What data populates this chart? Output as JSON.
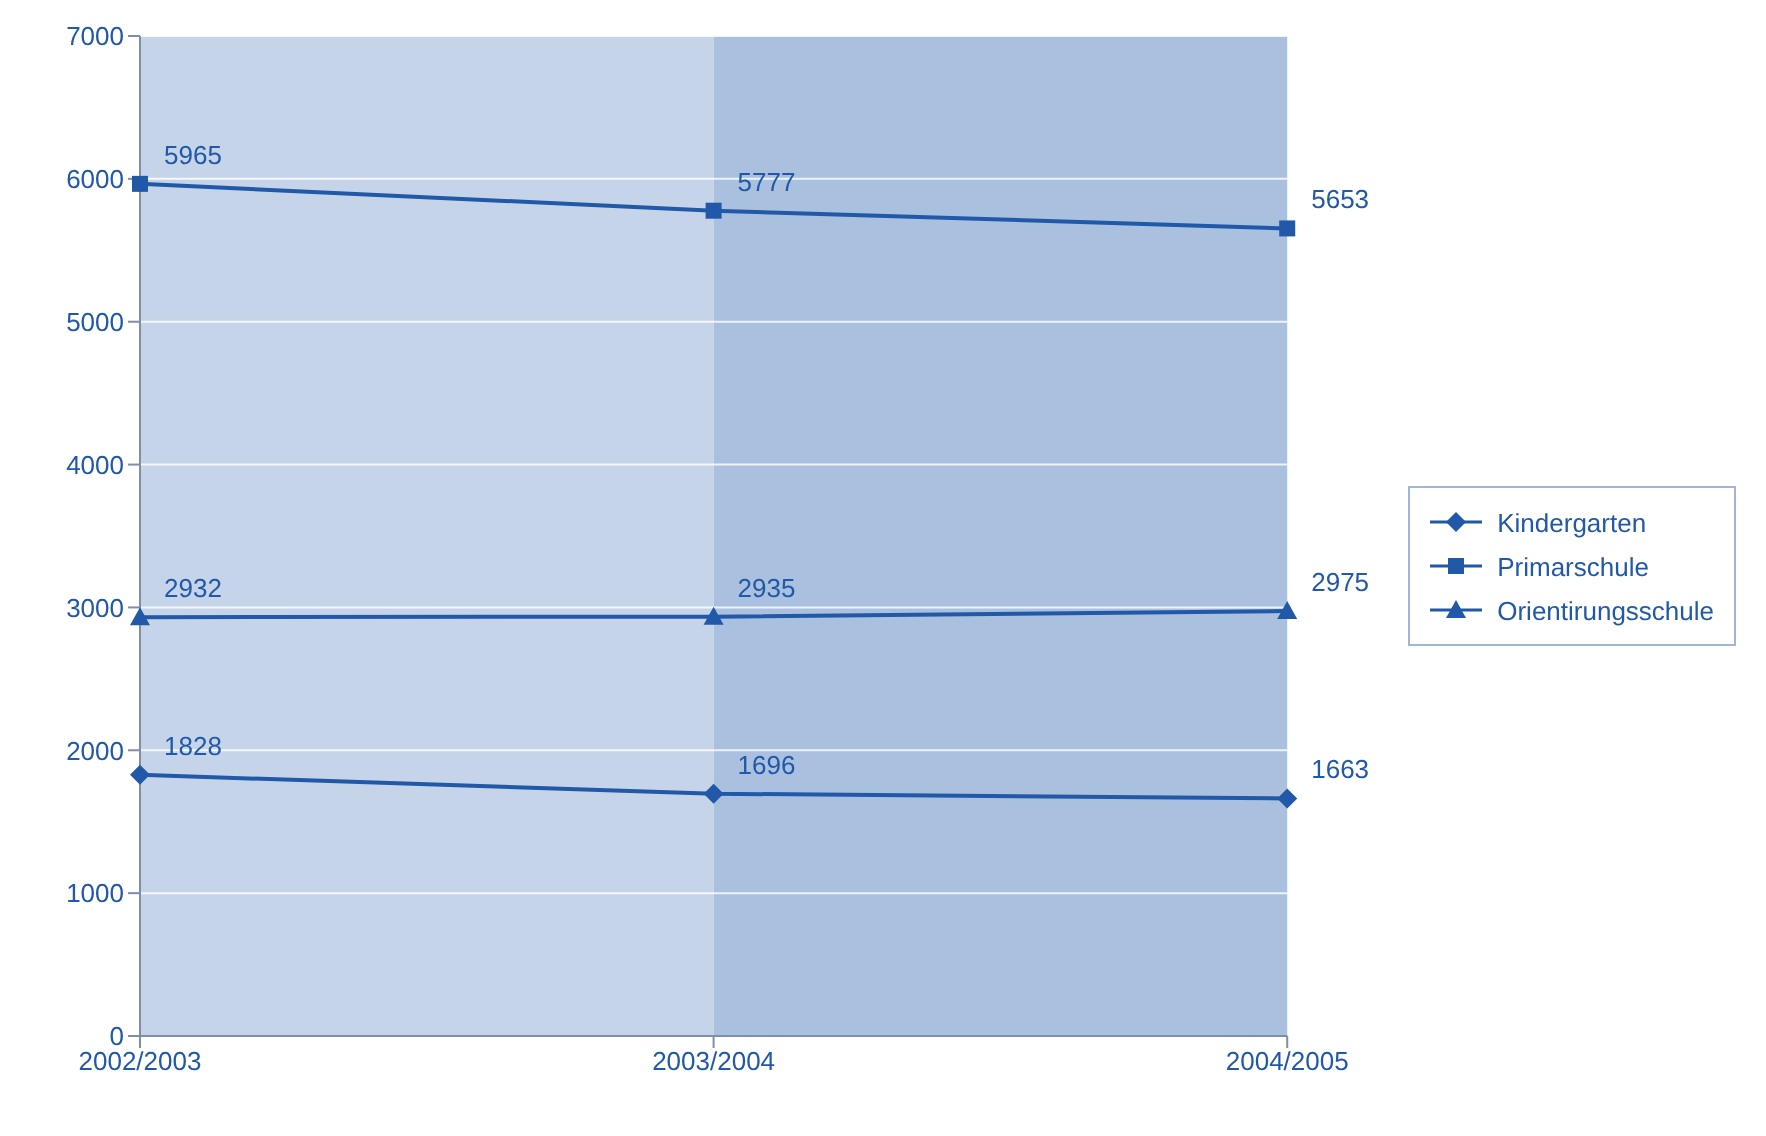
{
  "chart_data": {
    "type": "line",
    "categories": [
      "2002/2003",
      "2003/2004",
      "2004/2005"
    ],
    "series": [
      {
        "name": "Kindergarten",
        "color": "#2158a8",
        "values": [
          1828,
          1696,
          1663
        ],
        "marker": "diamond"
      },
      {
        "name": "Primarschule",
        "color": "#2158a8",
        "values": [
          5965,
          5777,
          5653
        ],
        "marker": "square"
      },
      {
        "name": "Orientirungsschule",
        "color": "#2158a8",
        "values": [
          2932,
          2935,
          2975
        ],
        "marker": "triangle"
      }
    ],
    "ylim": [
      0,
      7000
    ],
    "yticks": [
      0,
      1000,
      2000,
      3000,
      4000,
      5000,
      6000,
      7000
    ],
    "grid": "y",
    "legend": "right",
    "data_labels": true,
    "bands": [
      {
        "axis": "x",
        "from": "2002/2003",
        "to": "2003/2004",
        "color": "#c6d4e9"
      },
      {
        "axis": "x",
        "from": "2003/2004",
        "to": "2004/2005",
        "color": "#a9c0df"
      }
    ]
  }
}
